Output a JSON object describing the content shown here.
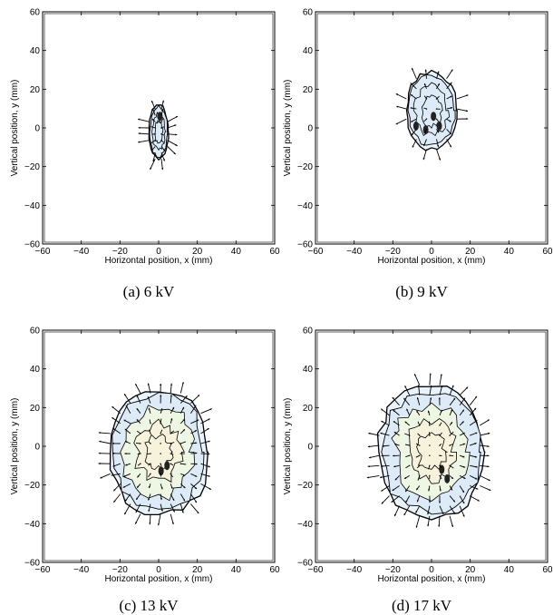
{
  "figure": {
    "panels": [
      {
        "id": "a",
        "caption": "(a) 6 kV"
      },
      {
        "id": "b",
        "caption": "(b) 9 kV"
      },
      {
        "id": "c",
        "caption": "(c) 13 kV"
      },
      {
        "id": "d",
        "caption": "(d) 17 kV"
      }
    ]
  },
  "chart_data": [
    {
      "type": "contour",
      "panel": "a",
      "xlabel": "Horizontal position, x (mm)",
      "ylabel": "Vertical position, y (mm)",
      "xlim": [
        -60,
        60
      ],
      "ylim": [
        -60,
        60
      ],
      "xticks": [
        -60,
        -40,
        -20,
        0,
        20,
        40,
        60
      ],
      "yticks": [
        -60,
        -40,
        -20,
        0,
        20,
        40,
        60
      ],
      "region": {
        "cx": 0,
        "cy": -2,
        "rx": 5,
        "ry": 14
      },
      "vector_field": true,
      "grid": false
    },
    {
      "type": "contour",
      "panel": "b",
      "xlabel": "Horizontal position, x (mm)",
      "ylabel": "Vertical position, y (mm)",
      "xlim": [
        -60,
        60
      ],
      "ylim": [
        -60,
        60
      ],
      "xticks": [
        -60,
        -40,
        -20,
        0,
        20,
        40,
        60
      ],
      "yticks": [
        -60,
        -40,
        -20,
        0,
        20,
        40,
        60
      ],
      "region": {
        "cx": 0,
        "cy": 9,
        "rx": 13,
        "ry": 20
      },
      "vector_field": true,
      "grid": false
    },
    {
      "type": "contour",
      "panel": "c",
      "xlabel": "Horizontal position, x (mm)",
      "ylabel": "Vertical position, y (mm)",
      "xlim": [
        -60,
        60
      ],
      "ylim": [
        -60,
        60
      ],
      "xticks": [
        -60,
        -40,
        -20,
        0,
        20,
        40,
        60
      ],
      "yticks": [
        -60,
        -40,
        -20,
        0,
        20,
        40,
        60
      ],
      "region": {
        "cx": 0,
        "cy": -3,
        "rx": 25,
        "ry": 32
      },
      "vector_field": true,
      "grid": false
    },
    {
      "type": "contour",
      "panel": "d",
      "xlabel": "Horizontal position, x (mm)",
      "ylabel": "Vertical position, y (mm)",
      "xlim": [
        -60,
        60
      ],
      "ylim": [
        -60,
        60
      ],
      "xticks": [
        -60,
        -40,
        -20,
        0,
        20,
        40,
        60
      ],
      "yticks": [
        -60,
        -40,
        -20,
        0,
        20,
        40,
        60
      ],
      "region": {
        "cx": 0,
        "cy": -3,
        "rx": 27,
        "ry": 33
      },
      "vector_field": true,
      "grid": false
    }
  ]
}
